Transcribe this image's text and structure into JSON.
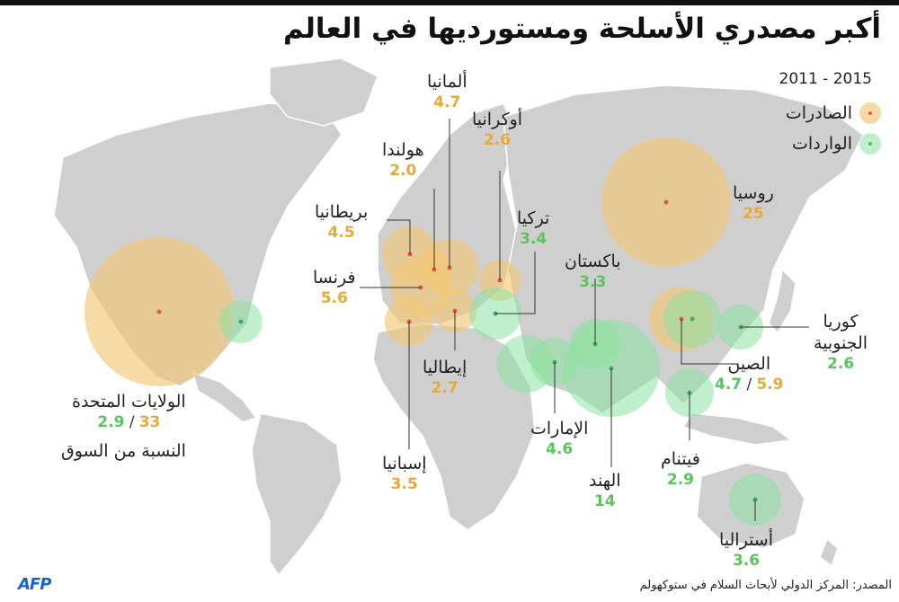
{
  "title": "أكبر مصدري الأسلحة ومستورديها في العالم",
  "period": "2011 - 2015",
  "legend": {
    "exports": "الصادرات",
    "imports": "الواردات"
  },
  "colors": {
    "exports": "#f3c878",
    "imports": "#8ce1a0",
    "export_text": "#e8a93a",
    "import_text": "#5cc45c",
    "land": "#cfcfcf"
  },
  "note": "النسبة من السوق",
  "source": "المصدر: المركز الدولي لأبحاث السلام في ستوكهولم",
  "logo": "AFP",
  "countries": {
    "usa": {
      "name": "الولايات المتحدة",
      "exports": "33",
      "imports": "2.9"
    },
    "russia": {
      "name": "روسيا",
      "exports": "25"
    },
    "china": {
      "name": "الصين",
      "exports": "5.9",
      "imports": "4.7"
    },
    "france": {
      "name": "فرنسا",
      "exports": "5.6"
    },
    "germany": {
      "name": "ألمانيا",
      "exports": "4.7"
    },
    "uk": {
      "name": "بريطانيا",
      "exports": "4.5"
    },
    "spain": {
      "name": "إسبانيا",
      "exports": "3.5"
    },
    "italy": {
      "name": "إيطاليا",
      "exports": "2.7"
    },
    "ukraine": {
      "name": "أوكرانيا",
      "exports": "2.6"
    },
    "netherlands": {
      "name": "هولندا",
      "exports": "2.0"
    },
    "india": {
      "name": "الهند",
      "imports": "14"
    },
    "uae": {
      "name": "الإمارات",
      "imports": "4.6"
    },
    "australia": {
      "name": "أستراليا",
      "imports": "3.6"
    },
    "turkey": {
      "name": "تركيا",
      "imports": "3.4"
    },
    "pakistan": {
      "name": "باكستان",
      "imports": "3.3"
    },
    "vietnam": {
      "name": "فيتنام",
      "imports": "2.9"
    },
    "south_korea": {
      "name_line1": "كوريا",
      "name_line2": "الجنوبية",
      "imports": "2.6"
    }
  }
}
